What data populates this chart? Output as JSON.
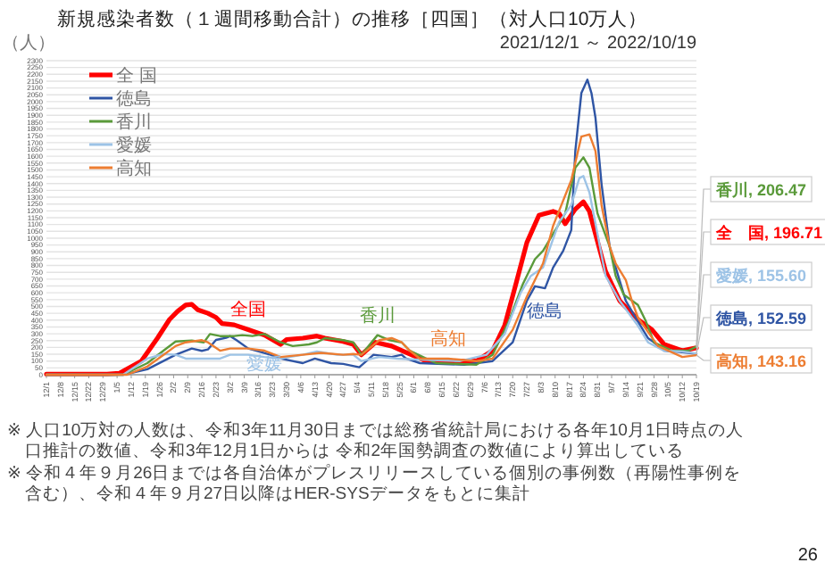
{
  "chart_data": {
    "type": "line",
    "title": "新規感染者数（１週間移動合計）の推移［四国］（対人口10万人）",
    "subtitle": "2021/12/1 ～ 2022/10/19",
    "ylabel": "（人）",
    "xlim": [
      "2021-12-01",
      "2022-10-19"
    ],
    "ylim": [
      0,
      2300
    ],
    "yticks": [
      0,
      50,
      100,
      150,
      200,
      250,
      300,
      350,
      400,
      450,
      500,
      550,
      600,
      650,
      700,
      750,
      800,
      850,
      900,
      950,
      1000,
      1050,
      1100,
      1150,
      1200,
      1250,
      1300,
      1350,
      1400,
      1450,
      1500,
      1550,
      1600,
      1650,
      1700,
      1750,
      1800,
      1850,
      1900,
      1950,
      2000,
      2050,
      2100,
      2150,
      2200,
      2250,
      2300
    ],
    "xticks": [
      {
        "value": "2021-12-01",
        "label": "12/1"
      },
      {
        "value": "2021-12-08",
        "label": "12/8"
      },
      {
        "value": "2021-12-15",
        "label": "12/15"
      },
      {
        "value": "2021-12-22",
        "label": "12/22"
      },
      {
        "value": "2021-12-29",
        "label": "12/29"
      },
      {
        "value": "2022-01-05",
        "label": "1/5"
      },
      {
        "value": "2022-01-12",
        "label": "1/12"
      },
      {
        "value": "2022-01-19",
        "label": "1/19"
      },
      {
        "value": "2022-01-26",
        "label": "1/26"
      },
      {
        "value": "2022-02-02",
        "label": "2/2"
      },
      {
        "value": "2022-02-09",
        "label": "2/9"
      },
      {
        "value": "2022-02-16",
        "label": "2/16"
      },
      {
        "value": "2022-02-23",
        "label": "2/23"
      },
      {
        "value": "2022-03-02",
        "label": "3/2"
      },
      {
        "value": "2022-03-09",
        "label": "3/9"
      },
      {
        "value": "2022-03-16",
        "label": "3/16"
      },
      {
        "value": "2022-03-23",
        "label": "3/23"
      },
      {
        "value": "2022-03-30",
        "label": "3/30"
      },
      {
        "value": "2022-04-06",
        "label": "4/6"
      },
      {
        "value": "2022-04-13",
        "label": "4/13"
      },
      {
        "value": "2022-04-20",
        "label": "4/20"
      },
      {
        "value": "2022-04-27",
        "label": "4/27"
      },
      {
        "value": "2022-05-04",
        "label": "5/4"
      },
      {
        "value": "2022-05-11",
        "label": "5/11"
      },
      {
        "value": "2022-05-18",
        "label": "5/18"
      },
      {
        "value": "2022-05-25",
        "label": "5/25"
      },
      {
        "value": "2022-06-01",
        "label": "6/1"
      },
      {
        "value": "2022-06-08",
        "label": "6/8"
      },
      {
        "value": "2022-06-15",
        "label": "6/15"
      },
      {
        "value": "2022-06-22",
        "label": "6/22"
      },
      {
        "value": "2022-06-29",
        "label": "6/29"
      },
      {
        "value": "2022-07-06",
        "label": "7/6"
      },
      {
        "value": "2022-07-13",
        "label": "7/13"
      },
      {
        "value": "2022-07-20",
        "label": "7/20"
      },
      {
        "value": "2022-07-27",
        "label": "7/27"
      },
      {
        "value": "2022-08-03",
        "label": "8/3"
      },
      {
        "value": "2022-08-10",
        "label": "8/10"
      },
      {
        "value": "2022-08-17",
        "label": "8/17"
      },
      {
        "value": "2022-08-24",
        "label": "8/24"
      },
      {
        "value": "2022-08-31",
        "label": "8/31"
      },
      {
        "value": "2022-09-07",
        "label": "9/7"
      },
      {
        "value": "2022-09-14",
        "label": "9/14"
      },
      {
        "value": "2022-09-21",
        "label": "9/21"
      },
      {
        "value": "2022-09-28",
        "label": "9/28"
      },
      {
        "value": "2022-10-05",
        "label": "10/5"
      },
      {
        "value": "2022-10-12",
        "label": "10/12"
      },
      {
        "value": "2022-10-19",
        "label": "10/19"
      }
    ],
    "grid": "y",
    "legend": "top left",
    "series": [
      {
        "name": "全 国",
        "color": "#ff0000",
        "x": [
          "2021-12-01",
          "2021-12-31",
          "2022-01-06",
          "2022-01-17",
          "2022-01-25",
          "2022-01-31",
          "2022-02-04",
          "2022-02-08",
          "2022-02-11",
          "2022-02-14",
          "2022-02-19",
          "2022-02-23",
          "2022-02-26",
          "2022-03-04",
          "2022-03-11",
          "2022-03-19",
          "2022-03-27",
          "2022-03-30",
          "2022-04-07",
          "2022-04-14",
          "2022-04-18",
          "2022-04-27",
          "2022-05-02",
          "2022-05-06",
          "2022-05-13",
          "2022-05-21",
          "2022-05-28",
          "2022-06-07",
          "2022-06-18",
          "2022-07-02",
          "2022-07-10",
          "2022-07-16",
          "2022-07-21",
          "2022-07-27",
          "2022-08-02",
          "2022-08-09",
          "2022-08-12",
          "2022-08-15",
          "2022-08-20",
          "2022-08-24",
          "2022-08-27",
          "2022-08-30",
          "2022-09-04",
          "2022-09-11",
          "2022-09-20",
          "2022-09-27",
          "2022-10-03",
          "2022-10-12",
          "2022-10-19"
        ],
        "values": [
          5,
          5,
          10,
          100,
          268,
          405,
          465,
          510,
          515,
          475,
          450,
          420,
          375,
          365,
          330,
          290,
          222,
          258,
          268,
          283,
          268,
          243,
          222,
          146,
          237,
          210,
          164,
          100,
          100,
          100,
          176,
          360,
          633,
          968,
          1168,
          1196,
          1180,
          1105,
          1213,
          1266,
          1196,
          1030,
          757,
          541,
          405,
          329,
          222,
          176,
          196.71
        ],
        "value_labels": [
          null,
          null,
          null,
          null,
          null,
          null,
          null,
          null,
          null,
          null,
          null,
          null,
          null,
          null,
          null,
          null,
          null,
          null,
          null,
          null,
          null,
          null,
          null,
          null,
          null,
          null,
          null,
          null,
          null,
          null,
          null,
          null,
          null,
          null,
          null,
          null,
          null,
          null,
          null,
          null,
          null,
          null,
          null,
          null,
          null,
          null,
          null,
          null,
          "全　国, 196.71"
        ]
      },
      {
        "name": "徳島",
        "color": "#2f55a4",
        "x": [
          "2021-12-01",
          "2022-01-08",
          "2022-01-20",
          "2022-02-03",
          "2022-02-11",
          "2022-02-16",
          "2022-02-19",
          "2022-02-23",
          "2022-02-28",
          "2022-03-02",
          "2022-03-05",
          "2022-03-11",
          "2022-03-22",
          "2022-03-27",
          "2022-04-07",
          "2022-04-13",
          "2022-04-21",
          "2022-04-27",
          "2022-05-05",
          "2022-05-12",
          "2022-05-21",
          "2022-05-26",
          "2022-05-28",
          "2022-06-04",
          "2022-06-26",
          "2022-07-10",
          "2022-07-20",
          "2022-07-27",
          "2022-07-31",
          "2022-08-05",
          "2022-08-09",
          "2022-08-14",
          "2022-08-18",
          "2022-08-20",
          "2022-08-23",
          "2022-08-26",
          "2022-08-28",
          "2022-08-30",
          "2022-09-02",
          "2022-09-06",
          "2022-09-09",
          "2022-09-14",
          "2022-09-20",
          "2022-09-25",
          "2022-09-28",
          "2022-10-03",
          "2022-10-12",
          "2022-10-19"
        ],
        "values": [
          0,
          0,
          40,
          146,
          192,
          175,
          185,
          255,
          270,
          283,
          255,
          192,
          146,
          118,
          85,
          118,
          85,
          79,
          55,
          146,
          130,
          146,
          120,
          85,
          73,
          100,
          237,
          541,
          648,
          633,
          785,
          907,
          1059,
          1637,
          2063,
          2161,
          2063,
          1880,
          1396,
          940,
          785,
          541,
          390,
          268,
          237,
          176,
          164,
          152.59
        ],
        "value_labels": [
          null,
          null,
          null,
          null,
          null,
          null,
          null,
          null,
          null,
          null,
          null,
          null,
          null,
          null,
          null,
          null,
          null,
          null,
          null,
          null,
          null,
          null,
          null,
          null,
          null,
          null,
          null,
          null,
          null,
          null,
          null,
          null,
          null,
          null,
          null,
          null,
          null,
          null,
          null,
          null,
          null,
          null,
          null,
          null,
          null,
          null,
          null,
          "徳島, 152.59"
        ]
      },
      {
        "name": "香川",
        "color": "#5a9a3a",
        "x": [
          "2021-12-01",
          "2022-01-08",
          "2022-01-20",
          "2022-01-28",
          "2022-02-03",
          "2022-02-11",
          "2022-02-17",
          "2022-02-20",
          "2022-02-25",
          "2022-03-04",
          "2022-03-08",
          "2022-03-13",
          "2022-03-19",
          "2022-03-27",
          "2022-04-02",
          "2022-04-10",
          "2022-04-14",
          "2022-04-18",
          "2022-04-27",
          "2022-05-02",
          "2022-05-06",
          "2022-05-14",
          "2022-05-20",
          "2022-05-26",
          "2022-05-30",
          "2022-06-12",
          "2022-07-02",
          "2022-07-10",
          "2022-07-18",
          "2022-07-25",
          "2022-07-31",
          "2022-08-04",
          "2022-08-15",
          "2022-08-20",
          "2022-08-24",
          "2022-08-27",
          "2022-08-31",
          "2022-09-06",
          "2022-09-09",
          "2022-09-13",
          "2022-09-20",
          "2022-09-24",
          "2022-09-28",
          "2022-10-07",
          "2022-10-15",
          "2022-10-19"
        ],
        "values": [
          0,
          0,
          85,
          176,
          243,
          250,
          237,
          298,
          283,
          283,
          290,
          283,
          298,
          237,
          210,
          222,
          237,
          268,
          253,
          237,
          146,
          290,
          253,
          237,
          176,
          85,
          73,
          146,
          390,
          663,
          846,
          907,
          1181,
          1515,
          1592,
          1515,
          1181,
          940,
          724,
          587,
          511,
          390,
          237,
          176,
          176,
          206.47
        ],
        "value_labels": [
          null,
          null,
          null,
          null,
          null,
          null,
          null,
          null,
          null,
          null,
          null,
          null,
          null,
          null,
          null,
          null,
          null,
          null,
          null,
          null,
          null,
          null,
          null,
          null,
          null,
          null,
          null,
          null,
          null,
          null,
          null,
          null,
          null,
          null,
          null,
          null,
          null,
          null,
          null,
          null,
          null,
          null,
          null,
          null,
          null,
          "香川, 206.47"
        ]
      },
      {
        "name": "愛媛",
        "color": "#9dc3e6",
        "x": [
          "2021-12-01",
          "2022-01-08",
          "2022-01-20",
          "2022-01-28",
          "2022-02-03",
          "2022-02-08",
          "2022-02-25",
          "2022-03-02",
          "2022-03-11",
          "2022-03-19",
          "2022-03-27",
          "2022-04-07",
          "2022-04-14",
          "2022-04-24",
          "2022-05-02",
          "2022-05-06",
          "2022-05-15",
          "2022-05-24",
          "2022-06-04",
          "2022-06-24",
          "2022-07-07",
          "2022-07-16",
          "2022-07-24",
          "2022-07-29",
          "2022-08-04",
          "2022-08-12",
          "2022-08-18",
          "2022-08-22",
          "2022-08-24",
          "2022-08-27",
          "2022-08-31",
          "2022-09-04",
          "2022-09-11",
          "2022-09-20",
          "2022-09-25",
          "2022-10-03",
          "2022-10-12",
          "2022-10-19"
        ],
        "values": [
          0,
          0,
          118,
          152,
          146,
          118,
          118,
          146,
          146,
          130,
          118,
          146,
          170,
          146,
          146,
          100,
          130,
          118,
          110,
          100,
          146,
          298,
          602,
          724,
          785,
          1120,
          1242,
          1440,
          1455,
          1334,
          1030,
          724,
          541,
          359,
          237,
          176,
          170,
          155.6
        ],
        "value_labels": [
          null,
          null,
          null,
          null,
          null,
          null,
          null,
          null,
          null,
          null,
          null,
          null,
          null,
          null,
          null,
          null,
          null,
          null,
          null,
          null,
          null,
          null,
          null,
          null,
          null,
          null,
          null,
          null,
          null,
          null,
          null,
          null,
          null,
          null,
          null,
          null,
          null,
          "愛媛, 155.60"
        ]
      },
      {
        "name": "高知",
        "color": "#ed7d31",
        "x": [
          "2021-12-01",
          "2022-01-10",
          "2022-01-20",
          "2022-01-28",
          "2022-02-03",
          "2022-02-08",
          "2022-02-16",
          "2022-02-19",
          "2022-02-25",
          "2022-03-02",
          "2022-03-11",
          "2022-03-19",
          "2022-03-27",
          "2022-04-07",
          "2022-04-16",
          "2022-04-27",
          "2022-05-02",
          "2022-05-06",
          "2022-05-15",
          "2022-05-21",
          "2022-05-26",
          "2022-05-30",
          "2022-06-04",
          "2022-06-18",
          "2022-07-02",
          "2022-07-10",
          "2022-07-20",
          "2022-07-27",
          "2022-08-04",
          "2022-08-09",
          "2022-08-18",
          "2022-08-23",
          "2022-08-27",
          "2022-08-30",
          "2022-09-02",
          "2022-09-06",
          "2022-09-09",
          "2022-09-14",
          "2022-09-17",
          "2022-09-20",
          "2022-09-25",
          "2022-09-30",
          "2022-10-12",
          "2022-10-19"
        ],
        "values": [
          0,
          0,
          60,
          146,
          210,
          237,
          253,
          237,
          176,
          192,
          192,
          176,
          130,
          146,
          160,
          146,
          152,
          146,
          253,
          268,
          237,
          176,
          118,
          118,
          100,
          118,
          329,
          572,
          815,
          1090,
          1424,
          1744,
          1760,
          1637,
          1242,
          940,
          815,
          694,
          541,
          420,
          313,
          210,
          130,
          143.16
        ],
        "value_labels": [
          null,
          null,
          null,
          null,
          null,
          null,
          null,
          null,
          null,
          null,
          null,
          null,
          null,
          null,
          null,
          null,
          null,
          null,
          null,
          null,
          null,
          null,
          null,
          null,
          null,
          null,
          null,
          null,
          null,
          null,
          null,
          null,
          null,
          null,
          null,
          null,
          null,
          null,
          null,
          null,
          null,
          null,
          null,
          "高知, 143.16"
        ]
      }
    ],
    "annotations": [
      {
        "text": "全国",
        "x": "2022-03-11",
        "y": 330
      },
      {
        "text": "香川",
        "x": "2022-05-14",
        "y": 290
      },
      {
        "text": "高知",
        "x": "2022-06-18",
        "y": 118
      },
      {
        "text": "徳島",
        "x": "2022-08-05",
        "y": 633
      },
      {
        "text": "愛媛",
        "x": "2022-03-19",
        "y": 130
      },
      "※ 人口10万対の人数は、令和3年11月30日までは総務省統計局における各年10月1日時点の人口推計の数値、令和3年12月1日からは 令和2年国勢調査の数値により算出している",
      "※ 令和４年９月26日までは各自治体がプレスリリースしている個別の事例数（再陽性事例を含む）、令和４年９月27日以降はHER-SYSデータをもとに集計",
      "26"
    ]
  }
}
